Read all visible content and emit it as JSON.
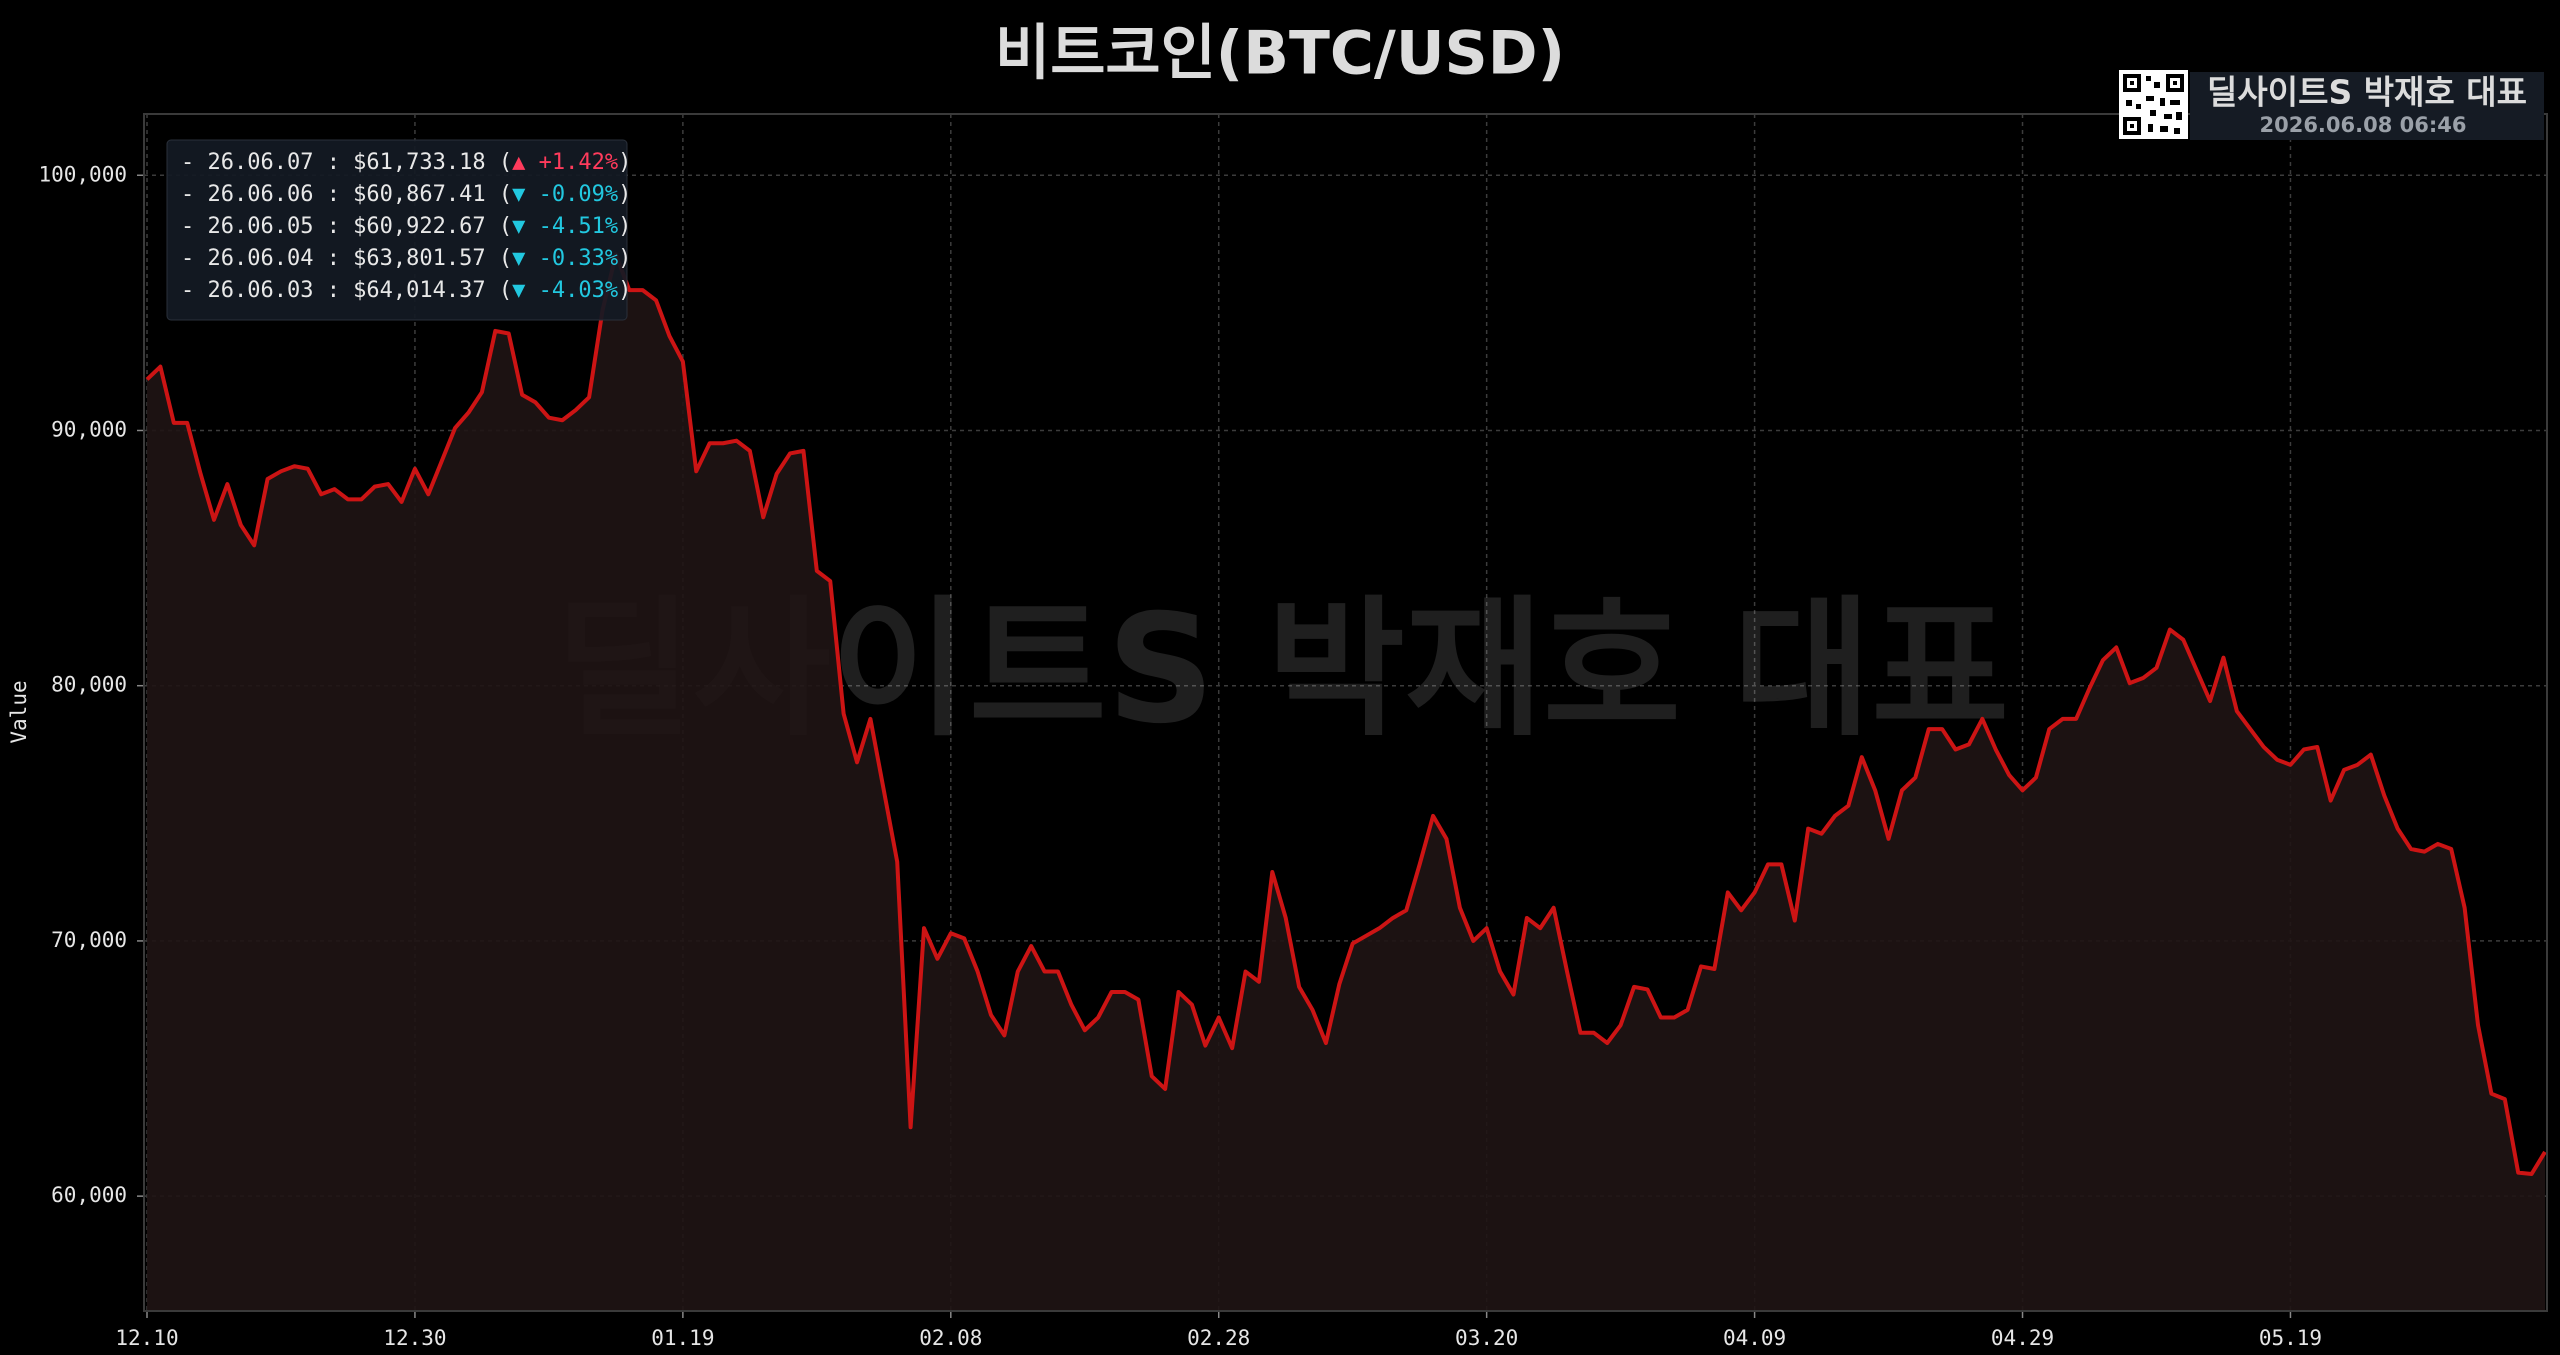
{
  "chart_data": {
    "type": "line",
    "title": "비트코인(BTC/USD)",
    "ylabel": "Value",
    "color": "#cc1414",
    "fill_color": "#1f1414",
    "grid": true,
    "categories": [
      "12.10",
      null,
      null,
      null,
      null,
      null,
      null,
      null,
      null,
      null,
      null,
      null,
      null,
      null,
      null,
      null,
      null,
      null,
      null,
      null,
      "12.30",
      null,
      null,
      null,
      null,
      null,
      null,
      null,
      null,
      null,
      null,
      null,
      null,
      null,
      null,
      null,
      null,
      null,
      null,
      null,
      "01.19",
      null,
      null,
      null,
      null,
      null,
      null,
      null,
      null,
      null,
      null,
      null,
      null,
      null,
      null,
      null,
      null,
      null,
      null,
      null,
      "02.08",
      null,
      null,
      null,
      null,
      null,
      null,
      null,
      null,
      null,
      null,
      null,
      null,
      null,
      null,
      null,
      null,
      null,
      null,
      null,
      "02.28",
      null,
      null,
      null,
      null,
      null,
      null,
      null,
      null,
      null,
      null,
      null,
      null,
      null,
      null,
      null,
      null,
      null,
      null,
      null,
      "03.20",
      null,
      null,
      null,
      null,
      null,
      null,
      null,
      null,
      null,
      null,
      null,
      null,
      null,
      null,
      null,
      null,
      null,
      null,
      null,
      "04.09",
      null,
      null,
      null,
      null,
      null,
      null,
      null,
      null,
      null,
      null,
      null,
      null,
      null,
      null,
      null,
      null,
      null,
      null,
      null,
      "04.29",
      null,
      null,
      null,
      null,
      null,
      null,
      null,
      null,
      null,
      null,
      null,
      null,
      null,
      null,
      null,
      null,
      null,
      null,
      null,
      "05.19",
      null,
      null,
      null,
      null,
      null,
      null,
      null,
      null,
      null,
      null,
      null,
      null,
      null,
      null,
      null,
      null,
      null,
      null,
      null
    ],
    "values": [
      92000,
      92500,
      90300,
      90300,
      88300,
      86500,
      87900,
      86300,
      85500,
      88100,
      88400,
      88600,
      88500,
      87500,
      87700,
      87300,
      87300,
      87800,
      87900,
      87200,
      88500,
      87500,
      88800,
      90100,
      90700,
      91500,
      93900,
      93800,
      91400,
      91100,
      90500,
      90400,
      90800,
      91300,
      94700,
      96900,
      95500,
      95500,
      95100,
      93700,
      92700,
      88400,
      89500,
      89500,
      89600,
      89200,
      86600,
      88300,
      89100,
      89200,
      84500,
      84100,
      78900,
      77000,
      78700,
      75900,
      73100,
      62700,
      70500,
      69300,
      70300,
      70100,
      68800,
      67100,
      66300,
      68800,
      69800,
      68800,
      68800,
      67500,
      66500,
      67000,
      68000,
      68000,
      67700,
      64700,
      64200,
      68000,
      67500,
      65900,
      67000,
      65800,
      68800,
      68400,
      72700,
      70900,
      68200,
      67300,
      66000,
      68300,
      69900,
      70200,
      70500,
      70900,
      71200,
      73000,
      74900,
      74000,
      71300,
      70000,
      70500,
      68800,
      67900,
      70900,
      70500,
      71300,
      68800,
      66400,
      66400,
      66000,
      66700,
      68200,
      68100,
      67000,
      67000,
      67300,
      69000,
      68900,
      71900,
      71200,
      71900,
      73000,
      73000,
      70800,
      74400,
      74200,
      74900,
      75300,
      77200,
      75900,
      74000,
      75900,
      76400,
      78300,
      78300,
      77500,
      77700,
      78700,
      77500,
      76500,
      75900,
      76400,
      78300,
      78700,
      78700,
      79900,
      81000,
      81500,
      80100,
      80300,
      80700,
      82200,
      81800,
      80600,
      79400,
      81100,
      79000,
      78300,
      77600,
      77100,
      76900,
      77500,
      77600,
      75500,
      76700,
      76900,
      77300,
      75700,
      74400,
      73600,
      73500,
      73800,
      73600,
      71300,
      66700,
      64014.37,
      63801.57,
      60922.67,
      60867.41,
      61733.18
    ],
    "ylim": [
      55500,
      102400
    ],
    "yticks": [
      {
        "value": 60000,
        "label": "60,000"
      },
      {
        "value": 70000,
        "label": "70,000"
      },
      {
        "value": 80000,
        "label": "80,000"
      },
      {
        "value": 90000,
        "label": "90,000"
      },
      {
        "value": 100000,
        "label": "100,000"
      }
    ],
    "annotations": [
      {
        "text": "- 26.06.07 : $61,733.18 (",
        "change": "▲ +1.42%",
        "close": ")",
        "color": "#ff3b5c"
      },
      {
        "text": "- 26.06.06 : $60,867.41 (",
        "change": "▼ -0.09%",
        "close": ")",
        "color": "#22c8e0"
      },
      {
        "text": "- 26.06.05 : $60,922.67 (",
        "change": "▼ -4.51%",
        "close": ")",
        "color": "#22c8e0"
      },
      {
        "text": "- 26.06.04 : $63,801.57 (",
        "change": "▼ -0.33%",
        "close": ")",
        "color": "#22c8e0"
      },
      {
        "text": "- 26.06.03 : $64,014.37 (",
        "change": "▼ -4.03%",
        "close": ")",
        "color": "#22c8e0"
      }
    ],
    "watermark": "딜사이트S 박재호 대표",
    "badge": {
      "title": "딜사이트S 박재호 대표",
      "timestamp": "2026.06.08 06:46"
    }
  }
}
